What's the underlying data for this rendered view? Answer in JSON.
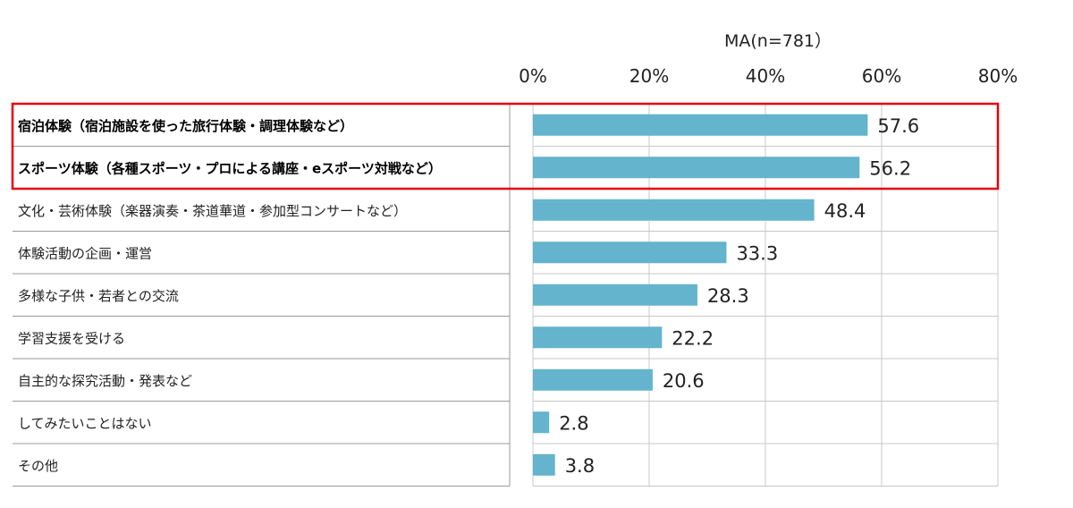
{
  "chart_data": {
    "type": "bar",
    "orientation": "horizontal",
    "note": "MA(n=781）",
    "xlim": [
      0,
      80
    ],
    "ticks": [
      "0%",
      "20%",
      "40%",
      "60%",
      "80%"
    ],
    "grid": true,
    "categories": [
      "宿泊体験（宿泊施設を使った旅行体験・調理体験など）",
      "スポーツ体験（各種スポーツ・プロによる講座・eスポーツ対戦など）",
      "文化・芸術体験（楽器演奏・茶道華道・参加型コンサートなど）",
      "体験活動の企画・運営",
      "多様な子供・若者との交流",
      "学習支援を受ける",
      "自主的な探究活動・発表など",
      "してみたいことはない",
      "その他"
    ],
    "values": [
      57.6,
      56.2,
      48.4,
      33.3,
      28.3,
      22.2,
      20.6,
      2.8,
      3.8
    ],
    "value_labels": [
      "57.6",
      "56.2",
      "48.4",
      "33.3",
      "28.3",
      "22.2",
      "20.6",
      "2.8",
      "3.8"
    ],
    "highlighted_categories": [
      0,
      1
    ],
    "bar_color": "#63b4cc",
    "highlight_color": "#e8000b",
    "grid_color": "#c8c8c8"
  }
}
